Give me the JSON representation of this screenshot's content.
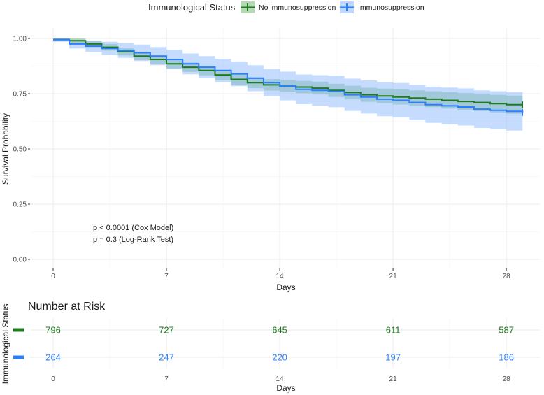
{
  "chart_data": [
    {
      "type": "line",
      "subtype": "kaplan-meier-step",
      "xlabel": "Days",
      "ylabel": "Survival Probability",
      "xlim": [
        0,
        29
      ],
      "ylim": [
        0,
        1
      ],
      "x_ticks": [
        0,
        7,
        14,
        21,
        28
      ],
      "y_ticks": [
        0,
        0.25,
        0.5,
        0.75,
        1.0
      ],
      "y_tick_labels": [
        "0.00",
        "0.25",
        "0.50",
        "0.75",
        "1.00"
      ],
      "legend": {
        "title": "Immunological Status",
        "position": "top"
      },
      "annotations": [
        "p < 0.0001 (Cox Model)",
        "p = 0.3 (Log-Rank Test)"
      ],
      "series": [
        {
          "name": "No immunosuppression",
          "color": "#1f7a1f",
          "band_color": "#6cb36c",
          "x": [
            0,
            1,
            2,
            3,
            4,
            5,
            6,
            7,
            8,
            9,
            10,
            11,
            12,
            13,
            14,
            15,
            16,
            17,
            18,
            19,
            20,
            21,
            22,
            23,
            24,
            25,
            26,
            27,
            28,
            29
          ],
          "y": [
            0.995,
            0.99,
            0.975,
            0.96,
            0.94,
            0.92,
            0.905,
            0.885,
            0.87,
            0.855,
            0.835,
            0.815,
            0.8,
            0.79,
            0.785,
            0.78,
            0.775,
            0.765,
            0.755,
            0.745,
            0.74,
            0.735,
            0.73,
            0.725,
            0.72,
            0.715,
            0.71,
            0.705,
            0.7,
            0.7
          ],
          "lower": [
            0.99,
            0.98,
            0.962,
            0.945,
            0.923,
            0.902,
            0.886,
            0.865,
            0.849,
            0.833,
            0.812,
            0.791,
            0.775,
            0.764,
            0.758,
            0.752,
            0.746,
            0.735,
            0.724,
            0.713,
            0.707,
            0.701,
            0.695,
            0.689,
            0.683,
            0.677,
            0.671,
            0.665,
            0.659,
            0.659
          ],
          "upper": [
            1.0,
            1.0,
            0.988,
            0.975,
            0.957,
            0.938,
            0.924,
            0.905,
            0.891,
            0.877,
            0.858,
            0.839,
            0.825,
            0.816,
            0.812,
            0.808,
            0.804,
            0.795,
            0.786,
            0.777,
            0.773,
            0.769,
            0.765,
            0.761,
            0.757,
            0.753,
            0.749,
            0.745,
            0.741,
            0.741
          ],
          "censor": {
            "x": 29,
            "y": 0.7
          }
        },
        {
          "name": "Immunosuppression",
          "color": "#2a7fff",
          "band_color": "#7fb2ff",
          "x": [
            0,
            1,
            2,
            3,
            4,
            5,
            6,
            7,
            8,
            9,
            10,
            11,
            12,
            13,
            14,
            15,
            16,
            17,
            18,
            19,
            20,
            21,
            22,
            23,
            24,
            25,
            26,
            27,
            28,
            29
          ],
          "y": [
            0.995,
            0.975,
            0.965,
            0.955,
            0.945,
            0.935,
            0.92,
            0.905,
            0.885,
            0.87,
            0.855,
            0.84,
            0.82,
            0.8,
            0.785,
            0.77,
            0.765,
            0.76,
            0.745,
            0.735,
            0.725,
            0.72,
            0.71,
            0.7,
            0.695,
            0.69,
            0.68,
            0.675,
            0.67,
            0.665
          ],
          "lower": [
            0.985,
            0.955,
            0.94,
            0.925,
            0.912,
            0.898,
            0.879,
            0.861,
            0.838,
            0.82,
            0.802,
            0.784,
            0.761,
            0.738,
            0.72,
            0.703,
            0.696,
            0.689,
            0.672,
            0.66,
            0.648,
            0.642,
            0.63,
            0.618,
            0.612,
            0.606,
            0.595,
            0.589,
            0.583,
            0.577
          ],
          "upper": [
            1.0,
            0.995,
            0.99,
            0.985,
            0.978,
            0.972,
            0.961,
            0.949,
            0.932,
            0.92,
            0.908,
            0.896,
            0.879,
            0.862,
            0.85,
            0.837,
            0.834,
            0.831,
            0.818,
            0.81,
            0.802,
            0.798,
            0.79,
            0.782,
            0.778,
            0.774,
            0.765,
            0.761,
            0.757,
            0.753
          ],
          "censor": {
            "x": 29,
            "y": 0.665
          }
        }
      ]
    },
    {
      "type": "table",
      "title": "Number at Risk",
      "xlabel": "Days",
      "ylabel": "Immunological Status",
      "x_ticks": [
        0,
        7,
        14,
        21,
        28
      ],
      "rows": [
        {
          "name": "No immunosuppression",
          "color": "#1f7a1f",
          "values": [
            796,
            727,
            645,
            611,
            587
          ]
        },
        {
          "name": "Immunosuppression",
          "color": "#2a7fff",
          "values": [
            264,
            247,
            220,
            197,
            186
          ]
        }
      ]
    }
  ]
}
